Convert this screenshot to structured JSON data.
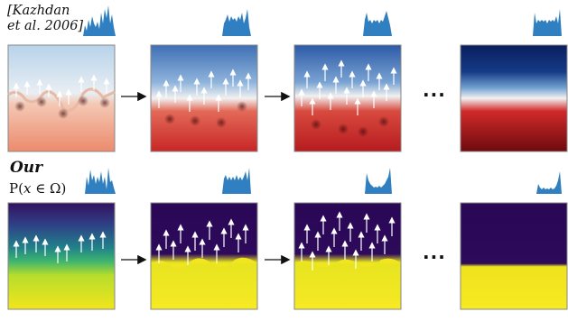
{
  "figure": {
    "row_top_label_line1": "[Kazhdan",
    "row_top_label_line2": "et al. 2006]",
    "row_bottom_label": "Our",
    "row_bottom_formula_prefix": "P(",
    "row_bottom_formula_var": "x",
    "row_bottom_formula_rest": " ∈ Ω)",
    "ellipsis": "...",
    "colors": {
      "histogram": "#2f7fc1",
      "arrow": "#ffffff",
      "kazhdan_low": "#1a3f8f",
      "kazhdan_mid": "#f3f3f3",
      "kazhdan_high": "#c21a1a",
      "ours_low": "#2d0a5a",
      "ours_high": "#f5e61a"
    },
    "icon_names": [
      "right-arrow-icon",
      "histogram-icon"
    ]
  }
}
